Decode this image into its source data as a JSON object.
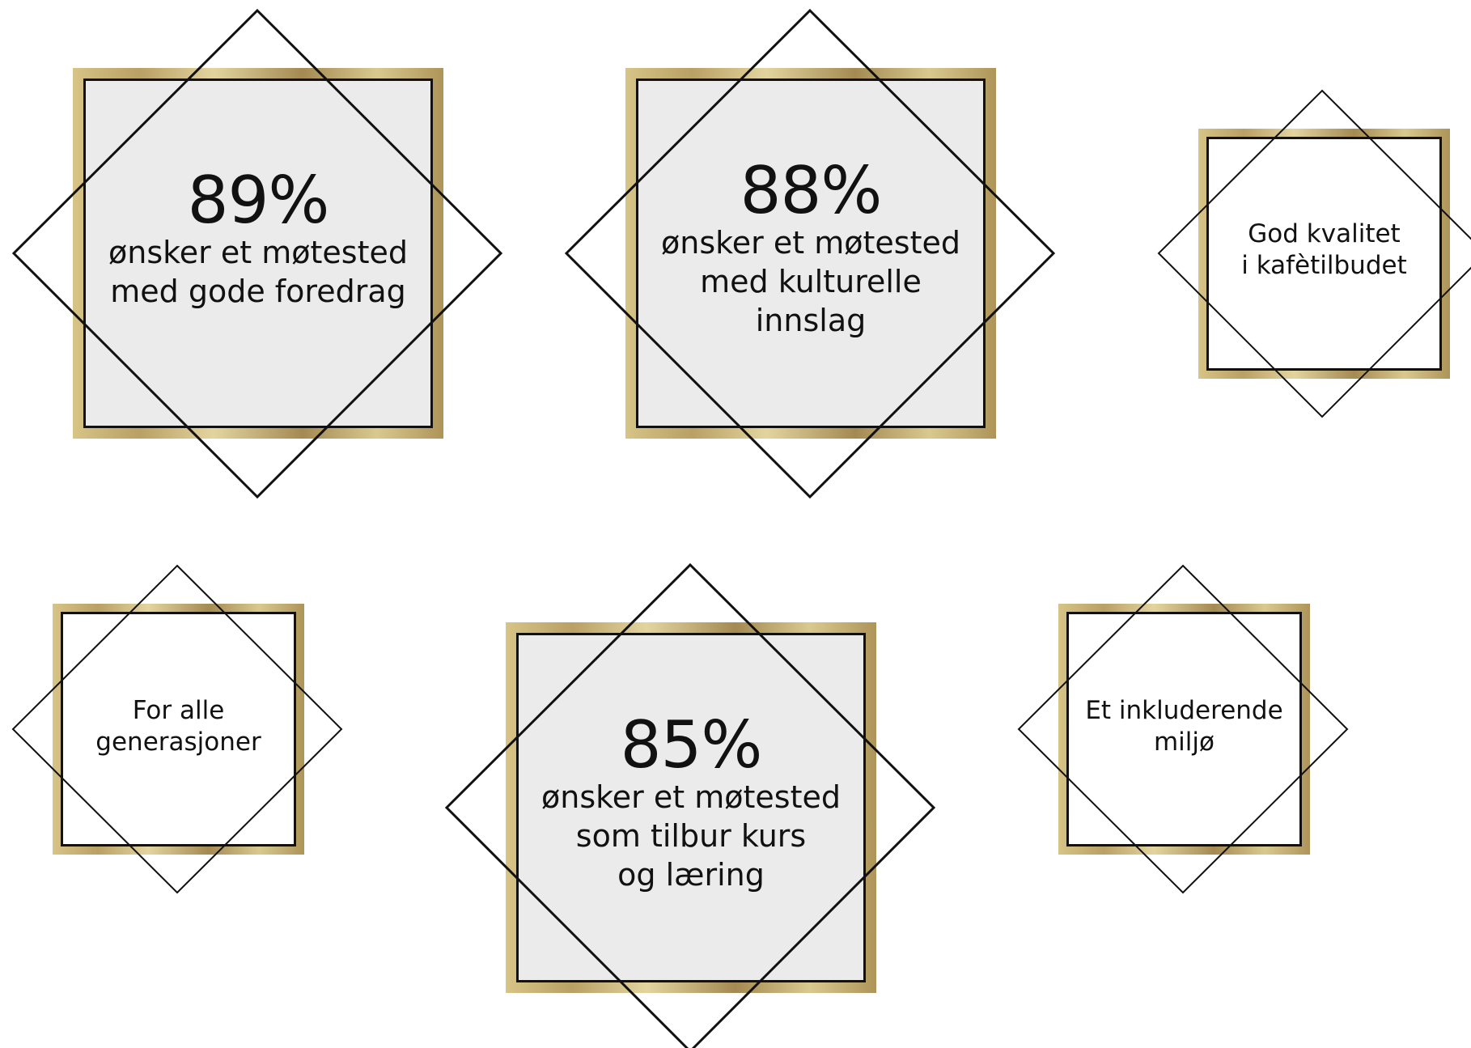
{
  "colors": {
    "gold": "#c2aa6d",
    "panel_grey": "#ebebeb",
    "line": "#111111"
  },
  "cards": {
    "foredrag": {
      "percent": "89%",
      "text": "ønsker et møtested\nmed gode foredrag"
    },
    "kultur": {
      "percent": "88%",
      "text": "ønsker et møtested\nmed kulturelle\ninnslag"
    },
    "kafe": {
      "text": "God kvalitet\ni kafètilbudet"
    },
    "generasjoner": {
      "text": "For alle\ngenerasjoner"
    },
    "kurs": {
      "percent": "85%",
      "text": "ønsker et møtested\nsom tilbur kurs\nog læring"
    },
    "miljo": {
      "text": "Et inkluderende\nmiljø"
    }
  }
}
